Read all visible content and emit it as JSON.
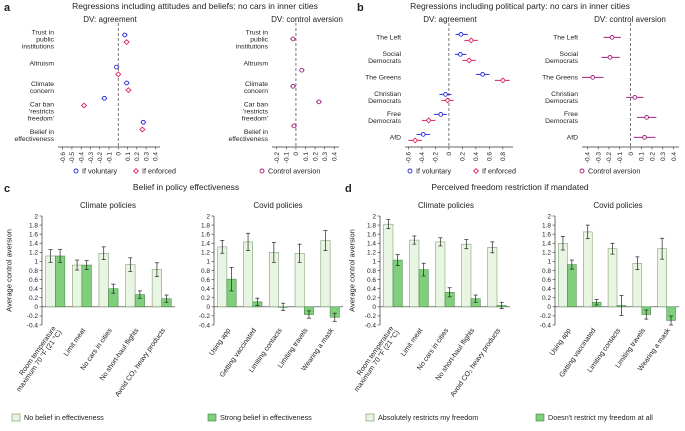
{
  "colors": {
    "blue": "#2b2bd9",
    "red": "#e0245e",
    "purple": "#a0207a",
    "light_bar": "#e9f5e3",
    "light_bar_edge": "#6c8f5c",
    "dark_bar": "#7fcf7c",
    "dark_bar_edge": "#3f7f3f",
    "error": "#222222"
  },
  "chart_data": [
    {
      "id": "a",
      "panel_letter": "a",
      "panel_title": "Regressions including attitudes and beliefs: no cars in inner cities",
      "type": "scatter",
      "subplots": [
        {
          "title": "DV: agreement",
          "categories": [
            "Trust in\npublic\ninstitutions",
            "Altruism",
            "Climate\nconcern",
            "Car ban\n'restricts\nfreedom'",
            "Belief in\neffectiveness"
          ],
          "xlim": [
            -0.65,
            0.45
          ],
          "xticks": [
            -0.6,
            -0.5,
            -0.4,
            -0.3,
            -0.2,
            -0.1,
            0,
            0.1,
            0.2,
            0.3,
            0.4
          ],
          "xtick_labels": [
            "-0.6",
            "-0.5",
            "-0.4",
            "-0.3",
            "-0.2",
            "-0.1",
            "0",
            "0.1",
            "0.2",
            "0.3",
            "0.4"
          ],
          "series": [
            {
              "name": "If voluntary",
              "color": "blue",
              "points": [
                {
                  "y": 0.08,
                  "v": 0.07,
                  "lo": 0.04,
                  "hi": 0.1
                },
                {
                  "y": 1.42,
                  "v": -0.02,
                  "lo": -0.04,
                  "hi": 0.01
                },
                {
                  "y": 2.08,
                  "v": 0.09,
                  "lo": 0.06,
                  "hi": 0.12
                },
                {
                  "y": 2.72,
                  "v": -0.15,
                  "lo": -0.18,
                  "hi": -0.12
                },
                {
                  "y": 3.72,
                  "v": 0.27,
                  "lo": 0.24,
                  "hi": 0.3
                }
              ]
            },
            {
              "name": "If enforced",
              "color": "red",
              "points": [
                {
                  "y": 0.38,
                  "v": 0.09,
                  "lo": 0.06,
                  "hi": 0.12
                },
                {
                  "y": 1.72,
                  "v": 0.0,
                  "lo": -0.03,
                  "hi": 0.03
                },
                {
                  "y": 2.38,
                  "v": 0.11,
                  "lo": 0.08,
                  "hi": 0.14
                },
                {
                  "y": 3.02,
                  "v": -0.37,
                  "lo": -0.4,
                  "hi": -0.34
                },
                {
                  "y": 4.02,
                  "v": 0.26,
                  "lo": 0.23,
                  "hi": 0.29
                }
              ]
            }
          ]
        },
        {
          "title": "DV: control aversion",
          "categories": [
            "Trust in\npublic\ninstitutions",
            "Altruism",
            "Climate\nconcern",
            "Car ban\n'restricts\nfreedom'",
            "Belief in\neffectiveness"
          ],
          "xlim": [
            -0.25,
            0.45
          ],
          "xticks": [
            -0.2,
            -0.1,
            0,
            0.1,
            0.2,
            0.3,
            0.4
          ],
          "xtick_labels": [
            "-0.2",
            "-0.1",
            "0",
            "0.1",
            "0.2",
            "0.3",
            "0.4"
          ],
          "series": [
            {
              "name": "Control aversion",
              "color": "purple",
              "points": [
                {
                  "y": 0.25,
                  "v": -0.03,
                  "lo": -0.06,
                  "hi": 0.0
                },
                {
                  "y": 1.55,
                  "v": 0.06,
                  "lo": 0.04,
                  "hi": 0.09
                },
                {
                  "y": 2.22,
                  "v": -0.03,
                  "lo": -0.06,
                  "hi": 0.0
                },
                {
                  "y": 2.87,
                  "v": 0.24,
                  "lo": 0.21,
                  "hi": 0.27
                },
                {
                  "y": 3.87,
                  "v": -0.02,
                  "lo": -0.05,
                  "hi": 0.01
                }
              ]
            }
          ]
        }
      ],
      "legend": [
        {
          "label": "If voluntary",
          "color": "blue"
        },
        {
          "label": "If enforced",
          "color": "red"
        },
        {
          "label": "Control aversion",
          "color": "purple"
        }
      ]
    },
    {
      "id": "b",
      "panel_letter": "b",
      "panel_title": "Regressions including political party: no cars in inner cities",
      "type": "scatter",
      "subplots": [
        {
          "title": "DV: agreement",
          "categories": [
            "The Left",
            "Social\nDemocrats",
            "The Greens",
            "Christian\nDemocrats",
            "Free\nDemocrats",
            "AfD"
          ],
          "xlim": [
            -0.65,
            0.95
          ],
          "xticks": [
            -0.6,
            -0.4,
            -0.2,
            0,
            0.2,
            0.4,
            0.6,
            0.8
          ],
          "xtick_labels": [
            "-0.6",
            "-0.4",
            "-0.2",
            "0",
            "0.2",
            "0.4",
            "0.6",
            "0.8"
          ],
          "series": [
            {
              "name": "If voluntary",
              "color": "blue",
              "points": [
                {
                  "y": 0.12,
                  "v": 0.18,
                  "lo": 0.1,
                  "hi": 0.28
                },
                {
                  "y": 1.12,
                  "v": 0.17,
                  "lo": 0.09,
                  "hi": 0.26
                },
                {
                  "y": 2.12,
                  "v": 0.5,
                  "lo": 0.4,
                  "hi": 0.6
                },
                {
                  "y": 3.12,
                  "v": -0.05,
                  "lo": -0.14,
                  "hi": 0.04
                },
                {
                  "y": 4.12,
                  "v": -0.12,
                  "lo": -0.22,
                  "hi": -0.03
                },
                {
                  "y": 5.12,
                  "v": -0.38,
                  "lo": -0.48,
                  "hi": -0.28
                }
              ]
            },
            {
              "name": "If enforced",
              "color": "red",
              "points": [
                {
                  "y": 0.42,
                  "v": 0.33,
                  "lo": 0.23,
                  "hi": 0.43
                },
                {
                  "y": 1.42,
                  "v": 0.3,
                  "lo": 0.2,
                  "hi": 0.4
                },
                {
                  "y": 2.42,
                  "v": 0.8,
                  "lo": 0.68,
                  "hi": 0.9
                },
                {
                  "y": 3.42,
                  "v": -0.02,
                  "lo": -0.11,
                  "hi": 0.07
                },
                {
                  "y": 4.42,
                  "v": -0.3,
                  "lo": -0.4,
                  "hi": -0.2
                },
                {
                  "y": 5.42,
                  "v": -0.5,
                  "lo": -0.6,
                  "hi": -0.4
                }
              ]
            }
          ]
        },
        {
          "title": "DV: control aversion",
          "categories": [
            "The Left",
            "Social\nDemocrats",
            "The Greens",
            "Christian\nDemocrats",
            "Free\nDemocrats",
            "AfD"
          ],
          "xlim": [
            -0.45,
            0.45
          ],
          "xticks": [
            -0.4,
            -0.3,
            -0.2,
            -0.1,
            0,
            0.1,
            0.2,
            0.3,
            0.4
          ],
          "xtick_labels": [
            "-0.4",
            "-0.3",
            "-0.2",
            "-0.1",
            "0",
            "0.1",
            "0.2",
            "0.3",
            "0.4"
          ],
          "series": [
            {
              "name": "Control aversion",
              "color": "purple",
              "points": [
                {
                  "y": 0.27,
                  "v": -0.17,
                  "lo": -0.25,
                  "hi": -0.09
                },
                {
                  "y": 1.27,
                  "v": -0.19,
                  "lo": -0.27,
                  "hi": -0.1
                },
                {
                  "y": 2.27,
                  "v": -0.35,
                  "lo": -0.45,
                  "hi": -0.25
                },
                {
                  "y": 3.27,
                  "v": 0.04,
                  "lo": -0.04,
                  "hi": 0.12
                },
                {
                  "y": 4.27,
                  "v": 0.15,
                  "lo": 0.06,
                  "hi": 0.24
                },
                {
                  "y": 5.27,
                  "v": 0.13,
                  "lo": 0.03,
                  "hi": 0.23
                }
              ]
            }
          ]
        }
      ],
      "legend": [
        {
          "label": "If voluntary",
          "color": "blue"
        },
        {
          "label": "If enforced",
          "color": "red"
        },
        {
          "label": "Control aversion",
          "color": "purple"
        }
      ]
    },
    {
      "id": "c",
      "panel_letter": "c",
      "panel_title": "Belief in policy effectiveness",
      "type": "bar",
      "ylabel": "Average control aversion",
      "ylim": [
        -0.4,
        2
      ],
      "yticks": [
        -0.4,
        -0.2,
        0,
        0.2,
        0.4,
        0.6,
        0.8,
        1,
        1.2,
        1.4,
        1.6,
        1.8,
        2
      ],
      "ytick_labels": [
        "-0.4",
        "-0.2",
        "0",
        "0.2",
        "0.4",
        "0.6",
        "0.8",
        "1",
        "1.2",
        "1.4",
        "1.6",
        "1.8",
        "2"
      ],
      "subplots": [
        {
          "title": "Climate policies",
          "categories": [
            "Room temperature\nmaximum 70 °F (21 °C)",
            "Limit meat",
            "No cars in cities",
            "No short-haul flights",
            "Avoid CO₂ heavy products"
          ],
          "series": [
            {
              "name": "No belief in effectiveness",
              "values": [
                1.12,
                0.92,
                1.18,
                0.93,
                0.82
              ],
              "err": [
                0.14,
                0.11,
                0.14,
                0.15,
                0.15
              ]
            },
            {
              "name": "Strong belief in effectiveness",
              "values": [
                1.12,
                0.92,
                0.4,
                0.27,
                0.18
              ],
              "err": [
                0.14,
                0.1,
                0.1,
                0.08,
                0.08
              ]
            }
          ]
        },
        {
          "title": "Covid policies",
          "categories": [
            "Using app",
            "Getting vaccinated",
            "Limiting contacts",
            "Limiting travels",
            "Wearing a mask"
          ],
          "series": [
            {
              "name": "No belief in effectiveness",
              "values": [
                1.32,
                1.43,
                1.2,
                1.18,
                1.46
              ],
              "err": [
                0.14,
                0.19,
                0.22,
                0.2,
                0.22
              ]
            },
            {
              "name": "Strong belief in effectiveness",
              "values": [
                0.61,
                0.11,
                0.0,
                -0.17,
                -0.23
              ],
              "err": [
                0.26,
                0.08,
                0.08,
                0.08,
                0.09
              ]
            }
          ]
        }
      ],
      "legend": [
        {
          "label": "No belief in effectiveness",
          "style": "light"
        },
        {
          "label": "Strong belief in effectiveness",
          "style": "dark"
        }
      ]
    },
    {
      "id": "d",
      "panel_letter": "d",
      "panel_title": "Perceived freedom restriction if mandated",
      "type": "bar",
      "ylabel": "Average control aversion",
      "ylim": [
        -0.4,
        2
      ],
      "yticks": [
        -0.4,
        -0.2,
        0,
        0.2,
        0.4,
        0.6,
        0.8,
        1,
        1.2,
        1.4,
        1.6,
        1.8,
        2
      ],
      "ytick_labels": [
        "-0.4",
        "-0.2",
        "0",
        "0.2",
        "0.4",
        "0.6",
        "0.8",
        "1",
        "1.2",
        "1.4",
        "1.6",
        "1.8",
        "2"
      ],
      "subplots": [
        {
          "title": "Climate policies",
          "categories": [
            "Room temperature\nmaximum 70 °F (21 °C)",
            "Limit meat",
            "No cars in cities",
            "No short-haul flights",
            "Avoid CO₂ heavy products"
          ],
          "series": [
            {
              "name": "Absolutely restricts my freedom",
              "values": [
                1.82,
                1.47,
                1.43,
                1.38,
                1.31
              ],
              "err": [
                0.1,
                0.09,
                0.09,
                0.1,
                0.12
              ]
            },
            {
              "name": "Doesn't restrict my freedom at all",
              "values": [
                1.03,
                0.82,
                0.32,
                0.18,
                0.03
              ],
              "err": [
                0.12,
                0.14,
                0.1,
                0.08,
                0.07
              ]
            }
          ]
        },
        {
          "title": "Covid policies",
          "categories": [
            "Using app",
            "Getting vaccinated",
            "Limiting contacts",
            "Limiting travels",
            "Wearing a mask"
          ],
          "series": [
            {
              "name": "Absolutely restricts my freedom",
              "values": [
                1.4,
                1.65,
                1.28,
                0.96,
                1.28
              ],
              "err": [
                0.15,
                0.15,
                0.12,
                0.14,
                0.23
              ]
            },
            {
              "name": "Doesn't restrict my freedom at all",
              "values": [
                0.93,
                0.1,
                0.03,
                -0.17,
                -0.3
              ],
              "err": [
                0.1,
                0.06,
                0.22,
                0.1,
                0.1
              ]
            }
          ]
        }
      ],
      "legend": [
        {
          "label": "Absolutely restricts my freedom",
          "style": "light"
        },
        {
          "label": "Doesn't restrict my freedom at all",
          "style": "dark"
        }
      ]
    }
  ]
}
